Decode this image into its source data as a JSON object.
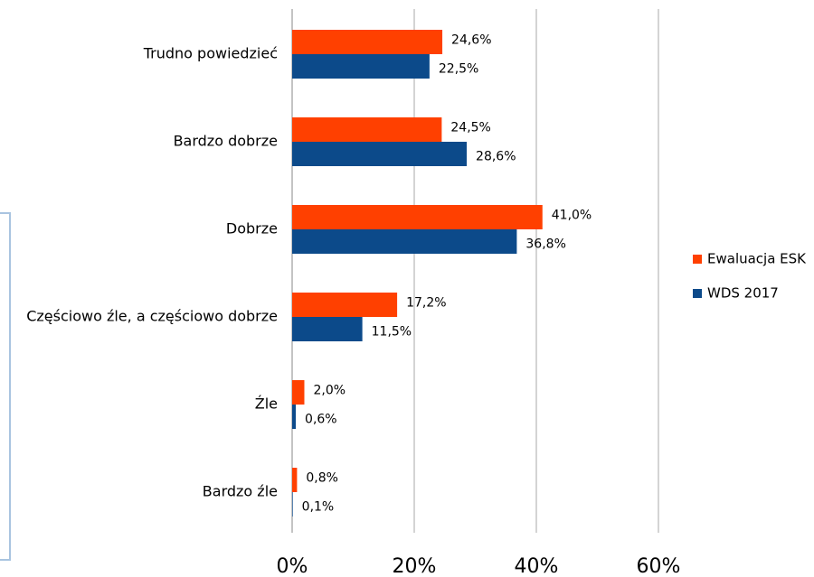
{
  "chart_data": {
    "type": "bar",
    "orientation": "horizontal",
    "categories": [
      "Trudno powiedzieć",
      "Bardzo dobrze",
      "Dobrze",
      "Częściowo źle, a częściowo dobrze",
      "Źle",
      "Bardzo źle"
    ],
    "series": [
      {
        "name": "Ewaluacja ESK",
        "color": "#ff4000",
        "values": [
          24.6,
          24.5,
          41.0,
          17.2,
          2.0,
          0.8
        ],
        "value_labels": [
          "24,6%",
          "24,5%",
          "41,0%",
          "17,2%",
          "2,0%",
          "0,8%"
        ]
      },
      {
        "name": "WDS 2017",
        "color": "#0c4a8a",
        "values": [
          22.5,
          28.6,
          36.8,
          11.5,
          0.6,
          0.1
        ],
        "value_labels": [
          "22,5%",
          "28,6%",
          "36,8%",
          "11,5%",
          "0,6%",
          "0,1%"
        ]
      }
    ],
    "xlim": [
      0,
      60
    ],
    "xticks": [
      {
        "value": 0,
        "label": "0%"
      },
      {
        "value": 20,
        "label": "20%"
      },
      {
        "value": 40,
        "label": "40%"
      },
      {
        "value": 60,
        "label": "60%"
      }
    ],
    "grid": true,
    "legend": "right"
  }
}
